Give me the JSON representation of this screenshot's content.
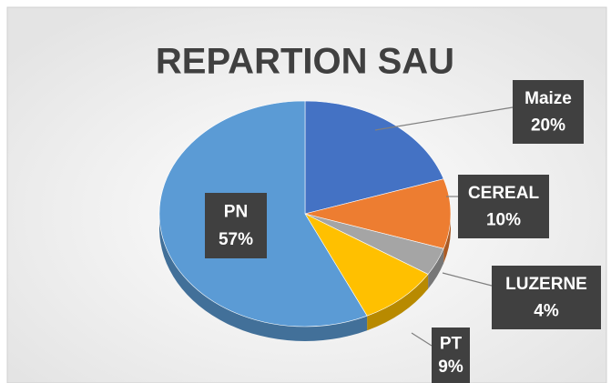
{
  "chart_data": {
    "type": "pie",
    "title": "REPARTION SAU",
    "categories": [
      "Maize",
      "CEREAL",
      "LUZERNE",
      "PT",
      "PN"
    ],
    "values": [
      20,
      10,
      4,
      9,
      57
    ],
    "value_labels": [
      "20%",
      "10%",
      "4%",
      "9%",
      "57%"
    ],
    "colors": [
      "#4472c4",
      "#ed7d31",
      "#a5a5a5",
      "#ffc000",
      "#5b9bd5"
    ],
    "legend": false
  }
}
